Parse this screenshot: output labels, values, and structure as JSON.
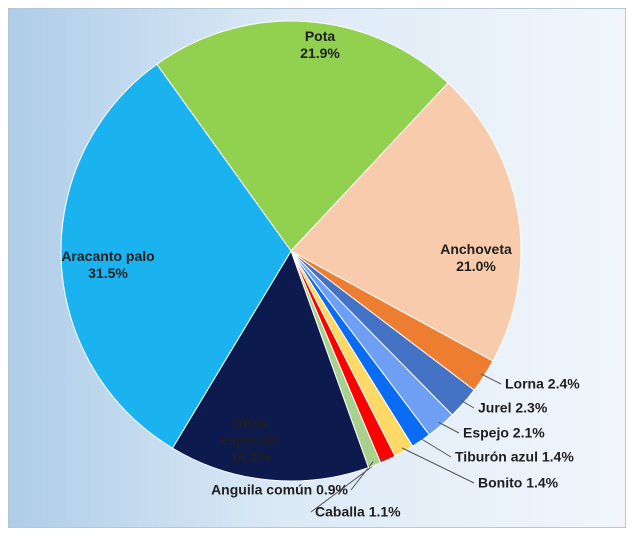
{
  "chart_data": {
    "type": "pie",
    "categories": [
      "Pota",
      "Anchoveta",
      "Lorna",
      "Jurel",
      "Espejo",
      "Tiburón azul",
      "Bonito",
      "Caballa",
      "Anguila común",
      "Otras especies",
      "Aracanto palo"
    ],
    "values": [
      21.9,
      21.0,
      2.4,
      2.3,
      2.1,
      1.4,
      1.4,
      1.1,
      0.9,
      14.1,
      31.5
    ],
    "value_labels": [
      "21.9%",
      "21.0%",
      "2.4%",
      "2.3%",
      "2.1%",
      "1.4%",
      "1.4%",
      "1.1%",
      "0.9%",
      "14.1%",
      "31.5%"
    ],
    "colors": [
      "#92d050",
      "#f8cbad",
      "#ed7d31",
      "#4472c4",
      "#6f9ff5",
      "#0a6cf5",
      "#ffd966",
      "#ff0000",
      "#a9d18e",
      "#0c1a4e",
      "#1ab3ef"
    ]
  }
}
